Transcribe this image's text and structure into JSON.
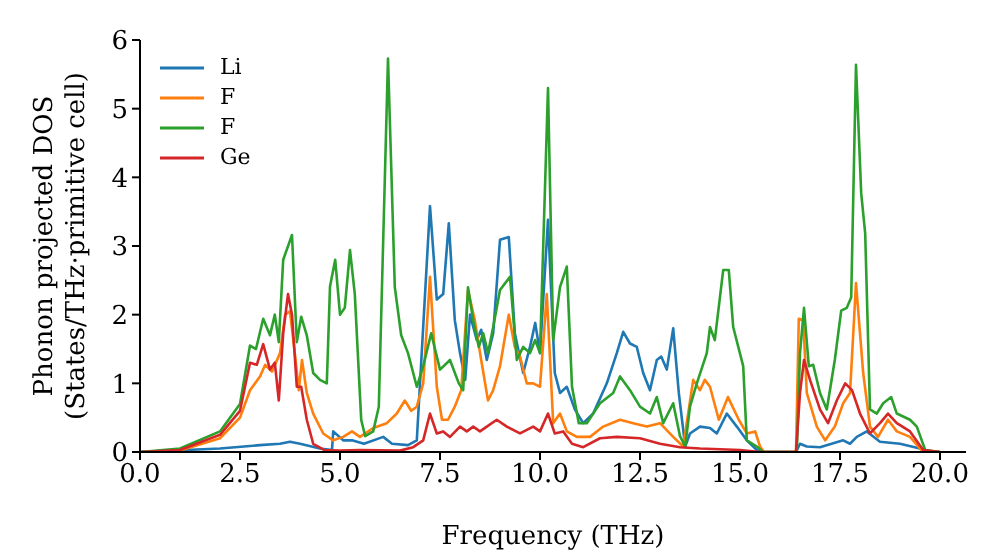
{
  "chart_data": {
    "type": "line",
    "xlabel": "Frequency (THz)",
    "ylabel": "Phonon projected DOS\n(States/THz·primitive cell)",
    "xlim": [
      0,
      20.65
    ],
    "xticks": [
      {
        "value": 0,
        "label": "0.0"
      },
      2.5,
      {
        "value": 5,
        "label": "5.0"
      },
      7.5,
      {
        "value": 10,
        "label": "10.0"
      },
      12.5,
      {
        "value": 15,
        "label": "15.0"
      },
      17.5,
      {
        "value": 20,
        "label": "20.0"
      }
    ],
    "ylim": [
      0,
      6
    ],
    "yticks": [
      0,
      1,
      2,
      3,
      4,
      5,
      6
    ],
    "grid": false,
    "legend": "top left",
    "marker": "none",
    "line_style": "solid",
    "series": [
      {
        "name": "Li",
        "color": "#1f77b4",
        "x": [
          0,
          2,
          3,
          3.5,
          3.75,
          4,
          4.5,
          4.8,
          4.83,
          5.08,
          5.3,
          5.6,
          6.08,
          6.3,
          6.7,
          6.92,
          7.25,
          7.42,
          7.58,
          7.72,
          7.87,
          8,
          8.13,
          8.25,
          8.42,
          8.53,
          8.67,
          8.83,
          9,
          9.22,
          9.37,
          9.58,
          9.75,
          9.88,
          10,
          10.2,
          10.37,
          10.5,
          10.67,
          10.87,
          11.08,
          11.33,
          11.67,
          11.92,
          12.08,
          12.25,
          12.42,
          12.58,
          12.75,
          12.92,
          13.03,
          13.17,
          13.33,
          13.47,
          13.63,
          13.75,
          14,
          14.25,
          14.42,
          14.67,
          14.92,
          15.17,
          15.42,
          15.6,
          16.4,
          16.5,
          16.67,
          17,
          17.58,
          17.75,
          17.92,
          18.17,
          18.5,
          19,
          19.5,
          19.7,
          20
        ],
        "values": [
          0,
          0.05,
          0.1,
          0.12,
          0.15,
          0.12,
          0.05,
          0.03,
          0.3,
          0.17,
          0.17,
          0.12,
          0.22,
          0.12,
          0.1,
          0.17,
          3.58,
          2.22,
          2.3,
          3.33,
          1.92,
          1.44,
          1.05,
          2,
          1.63,
          1.78,
          1.34,
          1.73,
          3.09,
          3.13,
          1.73,
          1.15,
          1.53,
          1.88,
          1.44,
          3.38,
          1.15,
          0.86,
          0.95,
          0.62,
          0.42,
          0.56,
          1,
          1.44,
          1.75,
          1.58,
          1.53,
          1.15,
          0.9,
          1.34,
          1.39,
          1.2,
          1.8,
          0.86,
          0.08,
          0.27,
          0.37,
          0.35,
          0.27,
          0.56,
          0.37,
          0.17,
          0.03,
          0,
          0,
          0.12,
          0.08,
          0.07,
          0.17,
          0.12,
          0.22,
          0.3,
          0.15,
          0.12,
          0.05,
          0,
          0
        ]
      },
      {
        "name": "F",
        "color": "#ff7f0e",
        "x": [
          0,
          1,
          2,
          2.5,
          2.75,
          3,
          3.13,
          3.3,
          3.5,
          3.63,
          3.75,
          3.87,
          3.97,
          4.05,
          4.17,
          4.33,
          4.58,
          4.83,
          5.08,
          5.3,
          5.5,
          5.83,
          6.17,
          6.42,
          6.62,
          6.78,
          6.92,
          7.08,
          7.25,
          7.42,
          7.55,
          7.7,
          7.87,
          8.03,
          8.2,
          8.37,
          8.53,
          8.7,
          8.83,
          9,
          9.22,
          9.37,
          9.5,
          9.67,
          9.83,
          10,
          10.17,
          10.33,
          10.5,
          10.67,
          10.92,
          11.25,
          11.58,
          12,
          12.33,
          12.67,
          13,
          13.33,
          13.58,
          13.83,
          14,
          14.12,
          14.25,
          14.47,
          14.7,
          14.97,
          15.17,
          15.38,
          15.5,
          15.6,
          16.4,
          16.47,
          16.58,
          16.67,
          16.92,
          17.13,
          17.37,
          17.58,
          17.75,
          17.9,
          18.08,
          18.25,
          18.45,
          18.7,
          18.92,
          19.25,
          19.53,
          20
        ],
        "values": [
          0,
          0.02,
          0.2,
          0.5,
          0.9,
          1.1,
          1.27,
          1.17,
          1.44,
          2,
          2.05,
          1.44,
          0.9,
          1.34,
          0.86,
          0.56,
          0.27,
          0.17,
          0.22,
          0.3,
          0.22,
          0.35,
          0.42,
          0.56,
          0.75,
          0.6,
          0.66,
          1,
          2.55,
          0.95,
          0.47,
          0.47,
          0.66,
          0.9,
          2.36,
          1.92,
          1.34,
          0.75,
          0.9,
          1.25,
          2,
          1.53,
          1.39,
          1,
          1,
          0.95,
          2.3,
          0.42,
          0.56,
          0.3,
          0.22,
          0.22,
          0.37,
          0.47,
          0.42,
          0.37,
          0.42,
          0.22,
          0.08,
          1.05,
          0.9,
          1.05,
          0.95,
          0.47,
          0.8,
          0.47,
          0.27,
          0.3,
          0.08,
          0,
          0,
          1.94,
          1.92,
          0.86,
          0.37,
          0.17,
          0.37,
          0.71,
          0.86,
          2.46,
          1.15,
          0.37,
          0.22,
          0.47,
          0.3,
          0.22,
          0.03,
          0
        ]
      },
      {
        "name": "F",
        "color": "#2ca02c",
        "x": [
          0,
          1,
          2,
          2.5,
          2.75,
          2.9,
          3.08,
          3.25,
          3.37,
          3.47,
          3.58,
          3.8,
          3.92,
          4.03,
          4.17,
          4.33,
          4.5,
          4.67,
          4.75,
          4.88,
          5,
          5.12,
          5.25,
          5.37,
          5.53,
          5.63,
          5.83,
          5.97,
          6.2,
          6.37,
          6.53,
          6.7,
          6.92,
          7.08,
          7.28,
          7.5,
          7.75,
          7.97,
          8.08,
          8.2,
          8.33,
          8.47,
          8.58,
          8.7,
          8.83,
          9,
          9.25,
          9.42,
          9.58,
          9.75,
          9.88,
          10,
          10.2,
          10.33,
          10.5,
          10.67,
          10.8,
          10.97,
          11.17,
          11.5,
          11.83,
          12,
          12.25,
          12.5,
          12.75,
          12.92,
          13.08,
          13.33,
          13.5,
          13.63,
          13.75,
          13.92,
          14.17,
          14.25,
          14.37,
          14.58,
          14.72,
          14.83,
          15.08,
          15.17,
          15.42,
          15.58,
          16.42,
          16.5,
          16.6,
          16.72,
          16.83,
          17,
          17.17,
          17.37,
          17.53,
          17.67,
          17.78,
          17.9,
          18.03,
          18.13,
          18.25,
          18.42,
          18.58,
          18.78,
          18.92,
          19.25,
          19.42,
          19.63,
          20
        ],
        "values": [
          0,
          0.05,
          0.3,
          0.7,
          1.55,
          1.5,
          1.94,
          1.7,
          2,
          1.6,
          2.8,
          3.16,
          1.6,
          1.97,
          1.7,
          1.15,
          1.05,
          1,
          2.41,
          2.8,
          2,
          2.1,
          2.94,
          2.3,
          0.47,
          0.23,
          0.3,
          0.66,
          5.73,
          2.4,
          1.7,
          1.44,
          0.95,
          1.25,
          1.73,
          1.2,
          1.34,
          1,
          0.9,
          2.4,
          1.92,
          1.53,
          1.73,
          1.44,
          1.82,
          2.36,
          2.55,
          1.34,
          1.53,
          1.44,
          1.63,
          1.44,
          5.3,
          1.63,
          2.4,
          2.7,
          0.95,
          0.42,
          0.42,
          0.71,
          0.86,
          1.1,
          0.9,
          0.66,
          0.56,
          0.8,
          0.42,
          0.71,
          0.23,
          0.08,
          0.66,
          1,
          1.44,
          1.82,
          1.63,
          2.65,
          2.65,
          1.82,
          1.25,
          0.17,
          0.08,
          0,
          0,
          1.44,
          2.1,
          1.25,
          1.27,
          0.86,
          0.62,
          1.34,
          2.06,
          2.1,
          2.25,
          5.64,
          3.77,
          3.18,
          0.62,
          0.56,
          0.71,
          0.8,
          0.56,
          0.47,
          0.37,
          0.03,
          0
        ]
      },
      {
        "name": "Ge",
        "color": "#d62728",
        "x": [
          0,
          1,
          2,
          2.5,
          2.75,
          2.92,
          3.08,
          3.25,
          3.37,
          3.47,
          3.58,
          3.7,
          3.8,
          3.92,
          4.03,
          4.17,
          4.33,
          4.6,
          5,
          5.5,
          6.5,
          6.83,
          7.08,
          7.25,
          7.42,
          7.58,
          7.75,
          8,
          8.17,
          8.33,
          8.5,
          8.67,
          8.92,
          9.17,
          9.5,
          9.83,
          10,
          10.2,
          10.37,
          10.58,
          10.8,
          11.08,
          11.5,
          11.92,
          12.5,
          13,
          13.5,
          14,
          15,
          15.5,
          16.4,
          16.5,
          16.6,
          16.75,
          17,
          17.2,
          17.42,
          17.63,
          17.8,
          18,
          18.25,
          18.5,
          18.7,
          18.92,
          19.25,
          19.58,
          20
        ],
        "values": [
          0,
          0.03,
          0.25,
          0.6,
          1.3,
          1.27,
          1.57,
          1.2,
          1.3,
          0.75,
          1.73,
          2.3,
          2,
          0.95,
          0.95,
          0.47,
          0.12,
          0.03,
          0.02,
          0.03,
          0.02,
          0.07,
          0.17,
          0.56,
          0.27,
          0.3,
          0.22,
          0.37,
          0.3,
          0.37,
          0.3,
          0.37,
          0.47,
          0.37,
          0.27,
          0.37,
          0.3,
          0.56,
          0.27,
          0.3,
          0.12,
          0.07,
          0.2,
          0.22,
          0.2,
          0.12,
          0.07,
          0.05,
          0.03,
          0,
          0,
          0.86,
          1.34,
          1.05,
          0.62,
          0.42,
          0.75,
          1,
          0.9,
          0.56,
          0.27,
          0.42,
          0.56,
          0.42,
          0.3,
          0.03,
          0
        ]
      }
    ]
  }
}
